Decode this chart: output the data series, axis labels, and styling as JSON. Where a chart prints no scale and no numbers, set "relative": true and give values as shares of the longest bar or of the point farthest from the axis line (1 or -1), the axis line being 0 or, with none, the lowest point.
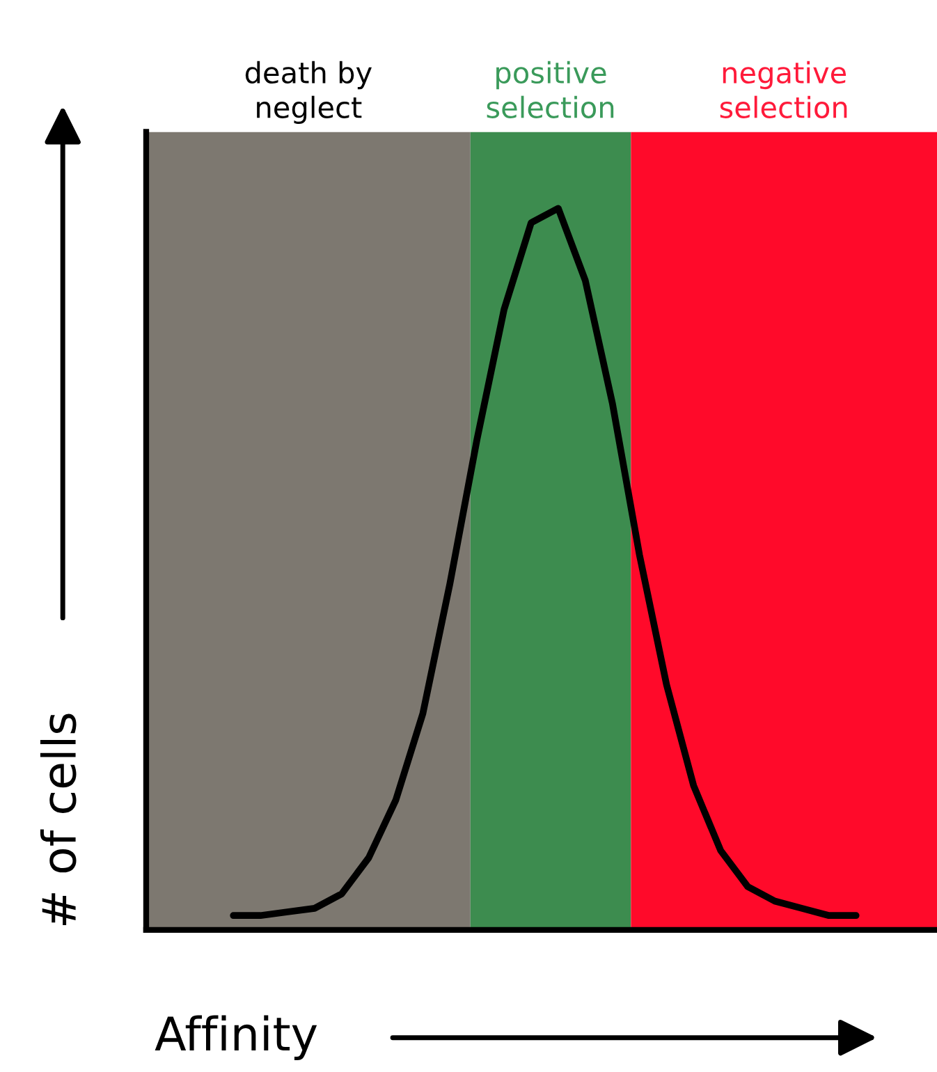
{
  "chart_data": {
    "type": "line",
    "relative": true,
    "xlabel": "Affinity",
    "ylabel": "# of cells",
    "categories": [
      null,
      null,
      null,
      null,
      null,
      null,
      null,
      null,
      null,
      null,
      null,
      null,
      null,
      null,
      null,
      null,
      null,
      null,
      null,
      null,
      null,
      null,
      null,
      null
    ],
    "series": [
      {
        "color": "#000000",
        "values": [
          0.02,
          0.02,
          0.025,
          0.03,
          0.05,
          0.1,
          0.18,
          0.3,
          0.48,
          0.68,
          0.86,
          0.98,
          1.0,
          0.9,
          0.73,
          0.52,
          0.34,
          0.2,
          0.11,
          0.06,
          0.04,
          0.03,
          0.02,
          0.02
        ]
      }
    ],
    "annotations": [
      "death by\nneglect",
      "positive\nselection",
      "negative\nselection"
    ],
    "legend": false,
    "tick_labels": false,
    "marker": "none",
    "line_style": "solid"
  }
}
